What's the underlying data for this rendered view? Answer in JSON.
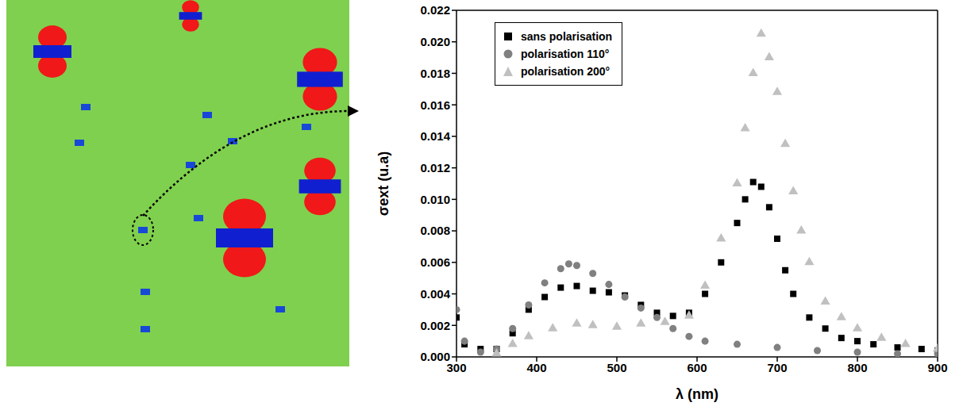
{
  "chart_data": {
    "type": "scatter",
    "x_label": "λ (nm)",
    "y_label": "σext (u.a)",
    "xlim": [
      300,
      900
    ],
    "xticks": [
      300,
      400,
      500,
      600,
      700,
      800,
      900
    ],
    "ylim": [
      0,
      0.022
    ],
    "yticks": [
      {
        "value": 0,
        "label": "0.000"
      },
      {
        "value": 0.002,
        "label": "0.002"
      },
      {
        "value": 0.004,
        "label": "0.004"
      },
      {
        "value": 0.006,
        "label": "0.006"
      },
      {
        "value": 0.008,
        "label": "0.008"
      },
      {
        "value": 0.01,
        "label": "0.010"
      },
      {
        "value": 0.012,
        "label": "0.012"
      },
      {
        "value": 0.014,
        "label": "0.014"
      },
      {
        "value": 0.016,
        "label": "0.016"
      },
      {
        "value": 0.018,
        "label": "0.018"
      },
      {
        "value": 0.02,
        "label": "0.020"
      },
      {
        "value": 0.022,
        "label": "0.022"
      }
    ],
    "legend": "upper left",
    "grid": false,
    "series": [
      {
        "name": "sans polarisation",
        "color": "#000000",
        "marker": "square",
        "x": [
          300,
          310,
          330,
          350,
          370,
          390,
          410,
          430,
          450,
          470,
          490,
          510,
          530,
          550,
          570,
          590,
          610,
          630,
          650,
          660,
          670,
          680,
          690,
          700,
          710,
          720,
          740,
          760,
          780,
          800,
          820,
          850,
          880,
          900
        ],
        "values": [
          0.0025,
          0.0008,
          0.0005,
          0.0005,
          0.0015,
          0.003,
          0.0038,
          0.0044,
          0.0045,
          0.0042,
          0.0041,
          0.0039,
          0.0033,
          0.0028,
          0.0026,
          0.0028,
          0.004,
          0.006,
          0.0085,
          0.01,
          0.0111,
          0.0108,
          0.0095,
          0.0075,
          0.0055,
          0.004,
          0.0025,
          0.0018,
          0.0012,
          0.001,
          0.0008,
          0.0006,
          0.0005,
          0.0004
        ]
      },
      {
        "name": "polarisation 110°",
        "color": "#808080",
        "marker": "circle",
        "x": [
          300,
          310,
          330,
          350,
          370,
          390,
          410,
          430,
          440,
          450,
          470,
          490,
          510,
          530,
          550,
          570,
          590,
          610,
          650,
          700,
          750,
          800,
          850,
          900
        ],
        "values": [
          0.003,
          0.001,
          0.0003,
          0.0005,
          0.0018,
          0.0033,
          0.0047,
          0.0056,
          0.0059,
          0.0058,
          0.0053,
          0.0046,
          0.0038,
          0.0031,
          0.0025,
          0.0018,
          0.0013,
          0.001,
          0.0008,
          0.0006,
          0.0004,
          0.0003,
          0.0002,
          0.0002
        ]
      },
      {
        "name": "polarisation 200°",
        "color": "#c0c0c0",
        "marker": "triangle",
        "x": [
          350,
          370,
          390,
          420,
          450,
          470,
          500,
          530,
          560,
          590,
          610,
          630,
          650,
          660,
          670,
          680,
          690,
          700,
          710,
          720,
          730,
          740,
          760,
          780,
          800,
          830,
          860,
          900
        ],
        "values": [
          0.0002,
          0.0008,
          0.0013,
          0.0018,
          0.0021,
          0.002,
          0.0019,
          0.0021,
          0.0022,
          0.0026,
          0.0045,
          0.0075,
          0.011,
          0.0145,
          0.018,
          0.0205,
          0.019,
          0.0168,
          0.0135,
          0.0105,
          0.008,
          0.006,
          0.0035,
          0.0025,
          0.0018,
          0.0012,
          0.0008,
          0.0005
        ]
      }
    ]
  }
}
